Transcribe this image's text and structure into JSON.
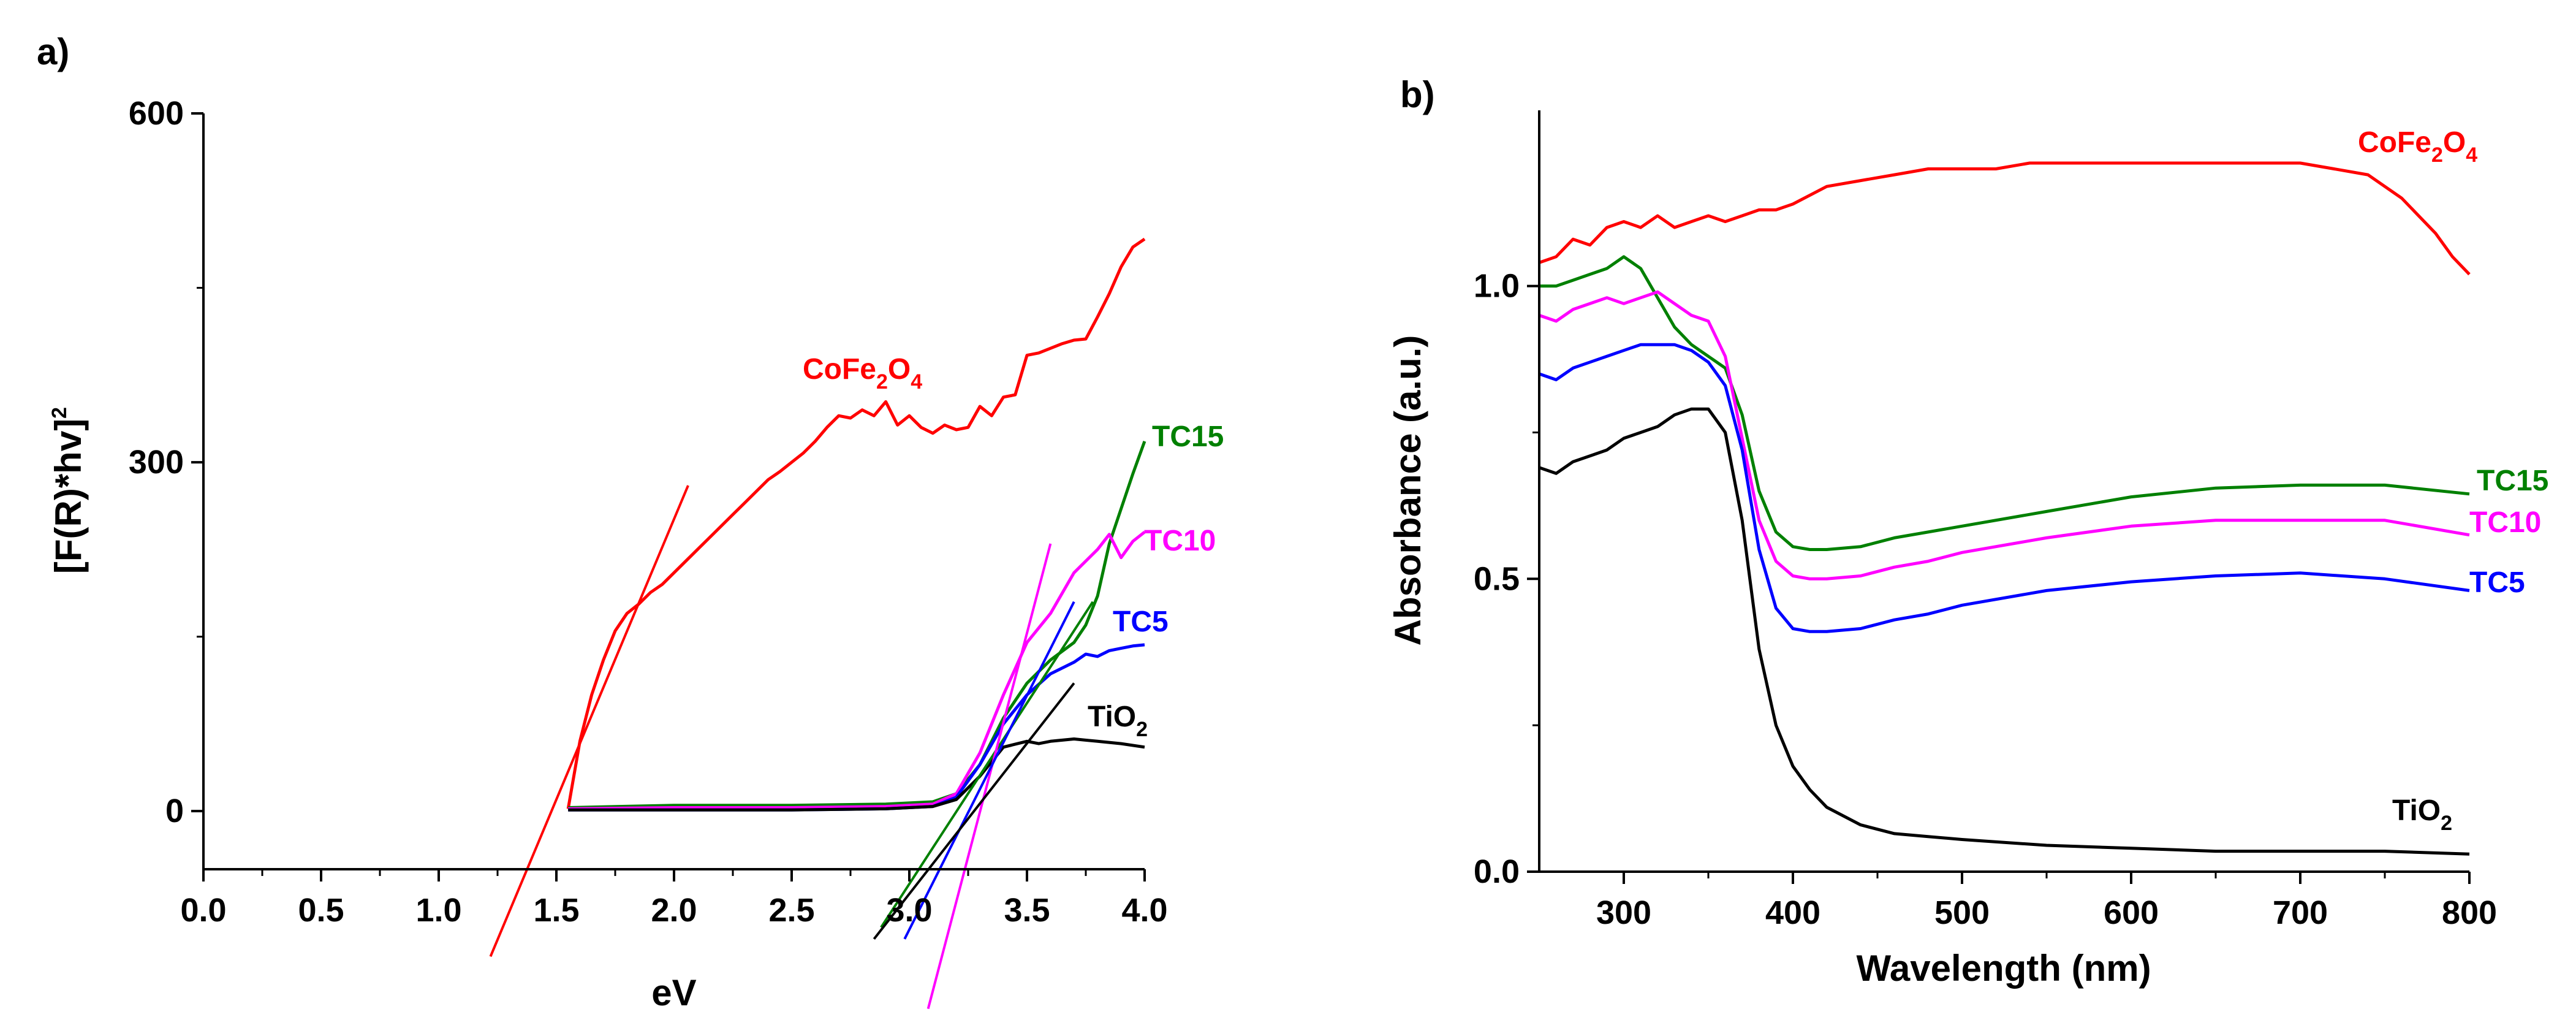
{
  "chart_data": [
    {
      "panel": "a)",
      "type": "line",
      "title": "",
      "xlabel": "eV",
      "ylabel": "[F(R)*hv]",
      "ylabel_sup": "2",
      "xlim": [
        0.0,
        4.0
      ],
      "ylim": [
        -50,
        600
      ],
      "xticks": [
        0.0,
        0.5,
        1.0,
        1.5,
        2.0,
        2.5,
        3.0,
        3.5,
        4.0
      ],
      "xtick_labels": [
        "0.0",
        "0.5",
        "1.0",
        "1.5",
        "2.0",
        "2.5",
        "3.0",
        "3.5",
        "4.0"
      ],
      "yticks": [
        0,
        300,
        600
      ],
      "ytick_labels": [
        "0",
        "300",
        "600"
      ],
      "series": [
        {
          "name": "CoFe2O4",
          "label_main": "CoFe",
          "label_sub1": "2",
          "label_mid": "O",
          "label_sub2": "4",
          "color": "#ff0000",
          "x": [
            1.55,
            1.6,
            1.65,
            1.7,
            1.75,
            1.8,
            1.85,
            1.9,
            1.95,
            2.0,
            2.05,
            2.1,
            2.15,
            2.2,
            2.25,
            2.3,
            2.35,
            2.4,
            2.45,
            2.5,
            2.55,
            2.6,
            2.65,
            2.7,
            2.75,
            2.8,
            2.85,
            2.9,
            2.95,
            3.0,
            3.05,
            3.1,
            3.15,
            3.2,
            3.25,
            3.3,
            3.35,
            3.4,
            3.45,
            3.5,
            3.55,
            3.6,
            3.65,
            3.7,
            3.75,
            3.8,
            3.85,
            3.9,
            3.95,
            4.0
          ],
          "y": [
            2,
            60,
            100,
            130,
            155,
            170,
            178,
            188,
            195,
            205,
            215,
            225,
            235,
            245,
            255,
            265,
            275,
            285,
            292,
            300,
            308,
            318,
            330,
            340,
            338,
            345,
            340,
            352,
            332,
            340,
            330,
            325,
            332,
            328,
            330,
            348,
            340,
            356,
            358,
            392,
            394,
            398,
            402,
            405,
            406,
            425,
            445,
            468,
            485,
            492
          ]
        },
        {
          "name": "TC15",
          "color": "#008000",
          "x": [
            1.55,
            2.0,
            2.5,
            2.9,
            3.1,
            3.2,
            3.3,
            3.4,
            3.5,
            3.6,
            3.7,
            3.75,
            3.8,
            3.85,
            3.9,
            3.95,
            4.0
          ],
          "y": [
            3,
            5,
            5,
            6,
            8,
            15,
            40,
            80,
            110,
            130,
            145,
            160,
            185,
            230,
            260,
            290,
            318
          ]
        },
        {
          "name": "TC10",
          "color": "#ff00ff",
          "x": [
            1.55,
            2.0,
            2.5,
            2.9,
            3.1,
            3.2,
            3.3,
            3.4,
            3.5,
            3.6,
            3.7,
            3.8,
            3.85,
            3.9,
            3.95,
            4.0
          ],
          "y": [
            2,
            3,
            3,
            4,
            6,
            15,
            50,
            100,
            145,
            170,
            205,
            225,
            238,
            218,
            232,
            240
          ]
        },
        {
          "name": "TC5",
          "color": "#0000ff",
          "x": [
            1.55,
            2.0,
            2.5,
            2.9,
            3.1,
            3.2,
            3.3,
            3.4,
            3.5,
            3.6,
            3.7,
            3.75,
            3.8,
            3.85,
            3.9,
            3.95,
            4.0
          ],
          "y": [
            1,
            1,
            1,
            2,
            4,
            12,
            40,
            75,
            100,
            118,
            128,
            135,
            133,
            138,
            140,
            142,
            143
          ]
        },
        {
          "name": "TiO2",
          "label_main": "TiO",
          "label_sub1": "2",
          "color": "#000000",
          "x": [
            1.55,
            2.0,
            2.5,
            2.9,
            3.1,
            3.2,
            3.3,
            3.4,
            3.5,
            3.55,
            3.6,
            3.7,
            3.8,
            3.9,
            4.0
          ],
          "y": [
            1,
            1,
            1,
            2,
            4,
            10,
            30,
            55,
            60,
            58,
            60,
            62,
            60,
            58,
            55
          ]
        }
      ],
      "tangent_lines": [
        {
          "series": "CoFe2O4",
          "color": "#ff0000",
          "x": [
            1.22,
            2.06
          ],
          "y": [
            -125,
            280
          ]
        },
        {
          "series": "TC15",
          "color": "#008000",
          "x": [
            2.88,
            3.78
          ],
          "y": [
            -100,
            180
          ]
        },
        {
          "series": "TC10",
          "color": "#ff00ff",
          "x": [
            3.08,
            3.6
          ],
          "y": [
            -170,
            230
          ]
        },
        {
          "series": "TC5",
          "color": "#0000ff",
          "x": [
            2.98,
            3.7
          ],
          "y": [
            -110,
            180
          ]
        },
        {
          "series": "TiO2",
          "color": "#000000",
          "x": [
            2.85,
            3.7
          ],
          "y": [
            -110,
            110
          ]
        }
      ]
    },
    {
      "panel": "b)",
      "type": "line",
      "title": "",
      "xlabel": "Wavelength (nm)",
      "ylabel": "Absorbance (a.u.)",
      "xlim": [
        250,
        800
      ],
      "ylim": [
        0.0,
        1.3
      ],
      "xticks": [
        300,
        400,
        500,
        600,
        700,
        800
      ],
      "xtick_labels": [
        "300",
        "400",
        "500",
        "600",
        "700",
        "800"
      ],
      "yticks": [
        0.0,
        0.5,
        1.0
      ],
      "ytick_labels": [
        "0.0",
        "0.5",
        "1.0"
      ],
      "series": [
        {
          "name": "CoFe2O4",
          "label_main": "CoFe",
          "label_sub1": "2",
          "label_mid": "O",
          "label_sub2": "4",
          "color": "#ff0000",
          "x": [
            250,
            260,
            270,
            280,
            290,
            300,
            310,
            320,
            330,
            340,
            350,
            360,
            370,
            380,
            390,
            400,
            420,
            440,
            460,
            480,
            500,
            520,
            540,
            560,
            580,
            600,
            620,
            640,
            660,
            680,
            700,
            720,
            740,
            750,
            760,
            770,
            780,
            790,
            800
          ],
          "y": [
            1.04,
            1.05,
            1.08,
            1.07,
            1.1,
            1.11,
            1.1,
            1.12,
            1.1,
            1.11,
            1.12,
            1.11,
            1.12,
            1.13,
            1.13,
            1.14,
            1.17,
            1.18,
            1.19,
            1.2,
            1.2,
            1.2,
            1.21,
            1.21,
            1.21,
            1.21,
            1.21,
            1.21,
            1.21,
            1.21,
            1.21,
            1.2,
            1.19,
            1.17,
            1.15,
            1.12,
            1.09,
            1.05,
            1.02
          ]
        },
        {
          "name": "TC15",
          "color": "#008000",
          "x": [
            250,
            260,
            270,
            280,
            290,
            300,
            310,
            320,
            330,
            340,
            350,
            360,
            370,
            380,
            390,
            400,
            410,
            420,
            440,
            460,
            480,
            500,
            550,
            600,
            650,
            700,
            750,
            800
          ],
          "y": [
            1.0,
            1.0,
            1.01,
            1.02,
            1.03,
            1.05,
            1.03,
            0.98,
            0.93,
            0.9,
            0.88,
            0.86,
            0.78,
            0.65,
            0.58,
            0.555,
            0.55,
            0.55,
            0.555,
            0.57,
            0.58,
            0.59,
            0.615,
            0.64,
            0.655,
            0.66,
            0.66,
            0.645
          ]
        },
        {
          "name": "TC10",
          "color": "#ff00ff",
          "x": [
            250,
            260,
            270,
            280,
            290,
            300,
            310,
            320,
            330,
            340,
            350,
            360,
            370,
            380,
            390,
            400,
            410,
            420,
            440,
            460,
            480,
            500,
            550,
            600,
            650,
            700,
            750,
            800
          ],
          "y": [
            0.95,
            0.94,
            0.96,
            0.97,
            0.98,
            0.97,
            0.98,
            0.99,
            0.97,
            0.95,
            0.94,
            0.88,
            0.74,
            0.6,
            0.53,
            0.505,
            0.5,
            0.5,
            0.505,
            0.52,
            0.53,
            0.545,
            0.57,
            0.59,
            0.6,
            0.6,
            0.6,
            0.575
          ]
        },
        {
          "name": "TC5",
          "color": "#0000ff",
          "x": [
            250,
            260,
            270,
            280,
            290,
            300,
            310,
            320,
            330,
            340,
            350,
            360,
            370,
            380,
            390,
            400,
            410,
            420,
            440,
            460,
            480,
            500,
            550,
            600,
            650,
            700,
            750,
            800
          ],
          "y": [
            0.85,
            0.84,
            0.86,
            0.87,
            0.88,
            0.89,
            0.9,
            0.9,
            0.9,
            0.89,
            0.87,
            0.83,
            0.72,
            0.55,
            0.45,
            0.415,
            0.41,
            0.41,
            0.415,
            0.43,
            0.44,
            0.455,
            0.48,
            0.495,
            0.505,
            0.51,
            0.5,
            0.48
          ]
        },
        {
          "name": "TiO2",
          "label_main": "TiO",
          "label_sub1": "2",
          "color": "#000000",
          "x": [
            250,
            260,
            270,
            280,
            290,
            300,
            310,
            320,
            330,
            340,
            350,
            360,
            370,
            380,
            390,
            400,
            410,
            420,
            440,
            460,
            480,
            500,
            550,
            600,
            650,
            700,
            750,
            800
          ],
          "y": [
            0.69,
            0.68,
            0.7,
            0.71,
            0.72,
            0.74,
            0.75,
            0.76,
            0.78,
            0.79,
            0.79,
            0.75,
            0.6,
            0.38,
            0.25,
            0.18,
            0.14,
            0.11,
            0.08,
            0.065,
            0.06,
            0.055,
            0.045,
            0.04,
            0.035,
            0.035,
            0.035,
            0.03
          ]
        }
      ]
    }
  ]
}
